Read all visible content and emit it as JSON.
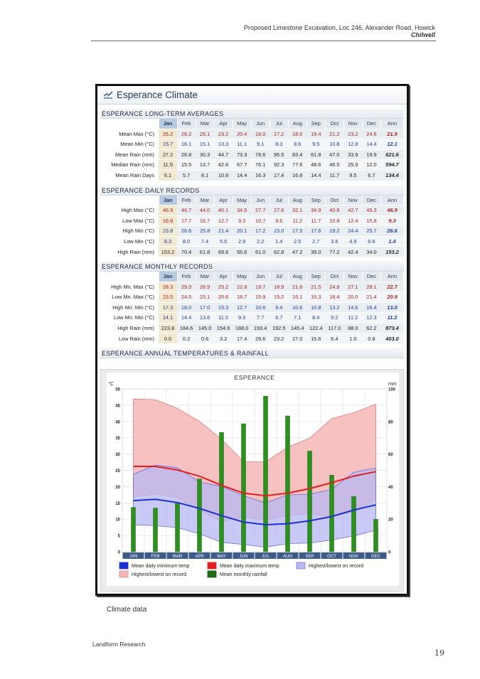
{
  "header": {
    "title": "Proposed Limestone Excavation, Loc 246, Alexander Road, Howick",
    "subtitle": "Chilwell"
  },
  "card": {
    "title": "Esperance Climate"
  },
  "months": [
    "Jan",
    "Feb",
    "Mar",
    "Apr",
    "May",
    "Jun",
    "Jul",
    "Aug",
    "Sep",
    "Oct",
    "Nov",
    "Dec",
    "Ann"
  ],
  "long_term": {
    "title": "ESPERANCE LONG-TERM AVERAGES",
    "rows": [
      {
        "label": "Mean Max (°C)",
        "color": "red",
        "values": [
          "26.2",
          "26.2",
          "25.1",
          "23.2",
          "20.4",
          "18.0",
          "17.2",
          "18.0",
          "19.4",
          "21.2",
          "23.2",
          "24.6",
          "21.9"
        ]
      },
      {
        "label": "Mean Min (°C)",
        "color": "blu",
        "values": [
          "15.7",
          "16.1",
          "15.1",
          "13.3",
          "11.1",
          "9.1",
          "8.3",
          "8.6",
          "9.5",
          "10.8",
          "12.8",
          "14.4",
          "12.1"
        ]
      },
      {
        "label": "Mean Rain (mm)",
        "color": "blk",
        "values": [
          "27.2",
          "26.8",
          "30.3",
          "44.7",
          "73.3",
          "78.6",
          "95.5",
          "83.4",
          "61.8",
          "47.0",
          "33.9",
          "19.9",
          "621.6"
        ]
      },
      {
        "label": "Median Rain (mm)",
        "color": "blk",
        "values": [
          "11.5",
          "15.5",
          "13.7",
          "42.6",
          "67.7",
          "76.1",
          "92.3",
          "77.6",
          "48.6",
          "46.5",
          "25.9",
          "12.0",
          "594.7"
        ]
      },
      {
        "label": "Mean Rain Days",
        "color": "blk",
        "values": [
          "6.1",
          "5.7",
          "8.1",
          "10.6",
          "14.4",
          "16.3",
          "17.4",
          "16.6",
          "14.4",
          "11.7",
          "9.5",
          "6.7",
          "134.4"
        ]
      }
    ]
  },
  "daily": {
    "title": "ESPERANCE DAILY RECORDS",
    "rows": [
      {
        "label": "High Max (°C)",
        "color": "red",
        "values": [
          "46.9",
          "46.7",
          "44.0",
          "40.1",
          "34.5",
          "27.7",
          "27.6",
          "32.1",
          "34.9",
          "40.9",
          "42.7",
          "45.3",
          "46.9"
        ]
      },
      {
        "label": "Low Max (°C)",
        "color": "red",
        "values": [
          "16.8",
          "17.7",
          "16.7",
          "12.7",
          "9.3",
          "10.7",
          "9.6",
          "11.2",
          "11.7",
          "10.8",
          "12.4",
          "15.8",
          "9.3"
        ]
      },
      {
        "label": "High Min (°C)",
        "color": "blu",
        "values": [
          "23.8",
          "26.6",
          "25.8",
          "21.4",
          "20.1",
          "17.2",
          "15.0",
          "17.5",
          "17.6",
          "19.2",
          "24.4",
          "25.7",
          "26.6"
        ]
      },
      {
        "label": "Low Min (°C)",
        "color": "blu",
        "values": [
          "8.3",
          "8.0",
          "7.4",
          "5.5",
          "2.9",
          "2.2",
          "1.4",
          "2.5",
          "2.7",
          "3.6",
          "4.9",
          "6.6",
          "1.4"
        ]
      },
      {
        "label": "High Rain (mm)",
        "color": "blk",
        "values": [
          "153.2",
          "70.4",
          "61.8",
          "69.6",
          "55.6",
          "61.0",
          "62.8",
          "47.2",
          "39.0",
          "77.2",
          "42.4",
          "34.0",
          "153.2"
        ]
      }
    ]
  },
  "monthly": {
    "title": "ESPERANCE MONTHLY RECORDS",
    "rows": [
      {
        "label": "High Mn. Max (°C)",
        "color": "red",
        "values": [
          "28.3",
          "29.3",
          "26.9",
          "25.2",
          "22.8",
          "19.7",
          "18.9",
          "21.6",
          "21.5",
          "24.8",
          "27.1",
          "28.1",
          "22.7"
        ]
      },
      {
        "label": "Low Mn. Max (°C)",
        "color": "red",
        "values": [
          "23.5",
          "24.0",
          "23.1",
          "20.6",
          "18.7",
          "15.9",
          "15.2",
          "16.1",
          "16.3",
          "18.4",
          "20.0",
          "21.4",
          "20.9"
        ]
      },
      {
        "label": "High Mn. Min (°C)",
        "color": "blu",
        "values": [
          "17.3",
          "18.0",
          "17.0",
          "15.3",
          "12.7",
          "10.6",
          "9.4",
          "10.6",
          "10.8",
          "13.2",
          "14.6",
          "16.4",
          "13.0"
        ]
      },
      {
        "label": "Low Mn. Min (°C)",
        "color": "blu",
        "values": [
          "14.1",
          "14.4",
          "13.6",
          "11.5",
          "9.3",
          "7.7",
          "6.7",
          "7.1",
          "8.4",
          "9.2",
          "11.2",
          "12.3",
          "11.2"
        ]
      },
      {
        "label": "High Rain (mm)",
        "color": "blk",
        "values": [
          "223.8",
          "184.6",
          "145.0",
          "154.9",
          "188.0",
          "193.4",
          "192.5",
          "145.4",
          "122.4",
          "117.0",
          "88.0",
          "62.2",
          "873.4"
        ]
      },
      {
        "label": "Low Rain (mm)",
        "color": "blk",
        "values": [
          "0.0",
          "0.2",
          "0.6",
          "3.2",
          "17.4",
          "29.6",
          "23.2",
          "27.0",
          "15.6",
          "6.4",
          "1.0",
          "0.8",
          "403.0"
        ]
      }
    ]
  },
  "annual": {
    "title": "ESPERANCE ANNUAL TEMPERATURES & RAINFALL"
  },
  "chart_data": {
    "type": "line",
    "title": "ESPERANCE",
    "ylabel_left": "°C",
    "ylabel_right": "mm",
    "ylim_left": [
      0,
      50
    ],
    "ylim_right": [
      0,
      100
    ],
    "left_ticks": [
      0,
      5,
      10,
      15,
      20,
      25,
      30,
      35,
      40,
      45,
      50
    ],
    "right_ticks": [
      0,
      20,
      40,
      60,
      80,
      100
    ],
    "categories": [
      "JAN",
      "FEB",
      "MAR",
      "APR",
      "MAY",
      "JUN",
      "JUL",
      "AUG",
      "SEP",
      "OCT",
      "NOV",
      "DEC"
    ],
    "series": [
      {
        "name": "Mean daily minimum temp",
        "axis": "left",
        "kind": "line",
        "color": "#1f2fd6",
        "values": [
          15.7,
          16.1,
          15.1,
          13.3,
          11.1,
          9.1,
          8.3,
          8.6,
          9.5,
          10.8,
          12.8,
          14.4
        ]
      },
      {
        "name": "Mean daily maximum temp",
        "axis": "left",
        "kind": "line",
        "color": "#e02020",
        "values": [
          26.2,
          26.2,
          25.1,
          23.2,
          20.4,
          18.0,
          17.2,
          18.0,
          19.4,
          21.2,
          23.2,
          24.6
        ]
      },
      {
        "name": "Highest/lowest on record",
        "axis": "left",
        "kind": "band",
        "color": "#b7b7f2",
        "upper": [
          23.8,
          26.6,
          25.8,
          21.4,
          20.1,
          17.2,
          15.0,
          17.5,
          17.6,
          19.2,
          24.4,
          25.7
        ],
        "lower": [
          8.3,
          8.0,
          7.4,
          5.5,
          2.9,
          2.2,
          1.4,
          2.5,
          2.7,
          3.6,
          4.9,
          6.6
        ]
      },
      {
        "name": "Highest/lowest on record",
        "axis": "left",
        "kind": "band",
        "color": "#f7b6b6",
        "upper": [
          46.9,
          46.7,
          44.0,
          40.1,
          34.5,
          27.7,
          27.6,
          32.1,
          34.9,
          40.9,
          42.7,
          45.3
        ],
        "lower": [
          16.8,
          17.7,
          16.7,
          12.7,
          9.3,
          10.7,
          9.6,
          11.2,
          11.7,
          10.8,
          12.4,
          15.8
        ]
      },
      {
        "name": "Mean monthly rainfall",
        "axis": "right",
        "kind": "bar",
        "color": "#2d8f1e",
        "values": [
          27.2,
          26.8,
          30.3,
          44.7,
          73.3,
          78.6,
          95.5,
          83.4,
          61.8,
          47.0,
          33.9,
          19.9
        ]
      }
    ],
    "legend": [
      {
        "label": "Mean daily minimum temp",
        "color": "#1f2fd6",
        "border": "#1f2fd6"
      },
      {
        "label": "Mean daily maximum temp",
        "color": "#e02020",
        "border": "#e02020"
      },
      {
        "label": "Highest/lowest on record",
        "color": "#b7b7f2",
        "border": "#7b7be0"
      },
      {
        "label": "Highest/lowest on record",
        "color": "#f7b6b6",
        "border": "#e08a8a"
      },
      {
        "label": "Mean monthly rainfall",
        "color": "#226b19",
        "border": "#1a5213"
      }
    ]
  },
  "caption": "Climate data",
  "footer": "Landform Research",
  "page_number": "19"
}
